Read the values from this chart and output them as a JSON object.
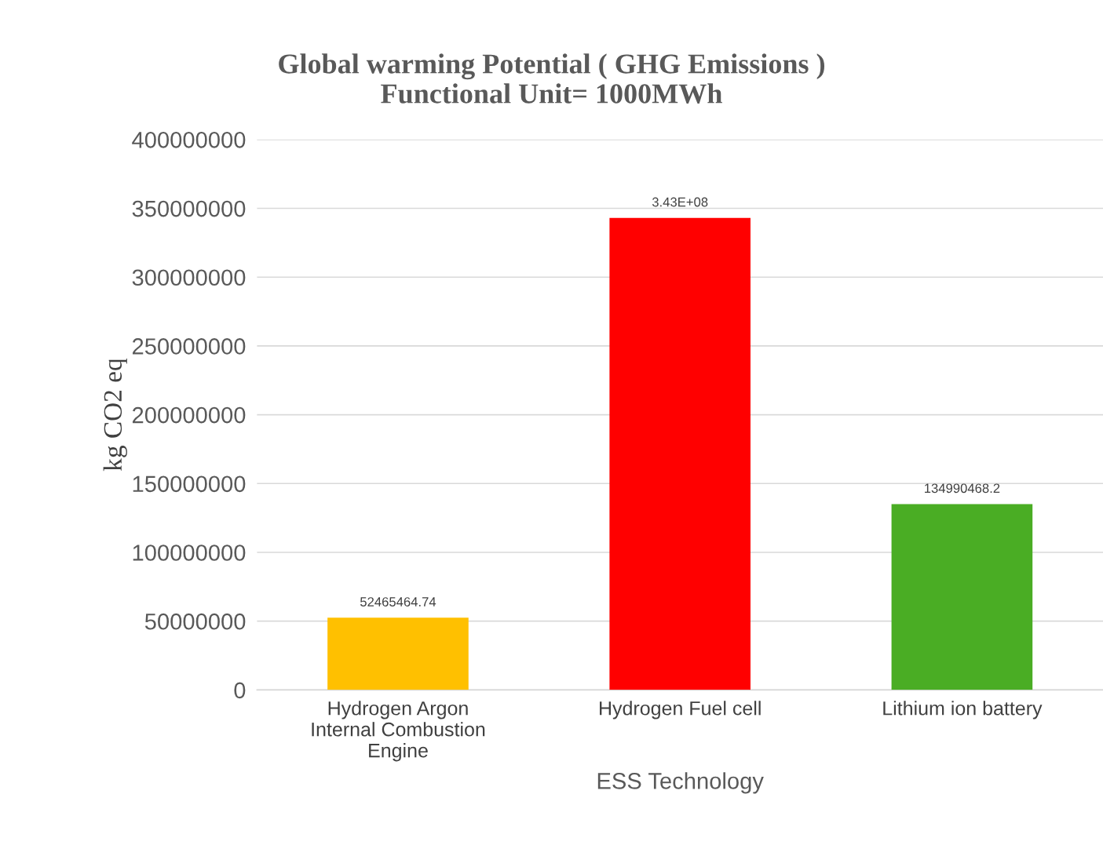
{
  "chart_data": {
    "type": "bar",
    "title": "Global warming Potential ( GHG Emissions )\nFunctional Unit= 1000MWh",
    "xlabel": "ESS Technology",
    "ylabel": "kg CO2 eq",
    "categories": [
      "Hydrogen Argon\nInternal Combustion\nEngine",
      "Hydrogen Fuel cell",
      "Lithium ion battery"
    ],
    "values": [
      52465464.74,
      343000000,
      134990468.2
    ],
    "colors": [
      "#ffc000",
      "#ff0000",
      "#4aad24"
    ],
    "value_labels": [
      "52465464.74",
      "3.43E+08",
      "134990468.2"
    ],
    "ylim": [
      0,
      400000000
    ],
    "yticks": [
      0,
      50000000,
      100000000,
      150000000,
      200000000,
      250000000,
      300000000,
      350000000,
      400000000
    ],
    "grid": "y",
    "legend": false
  }
}
